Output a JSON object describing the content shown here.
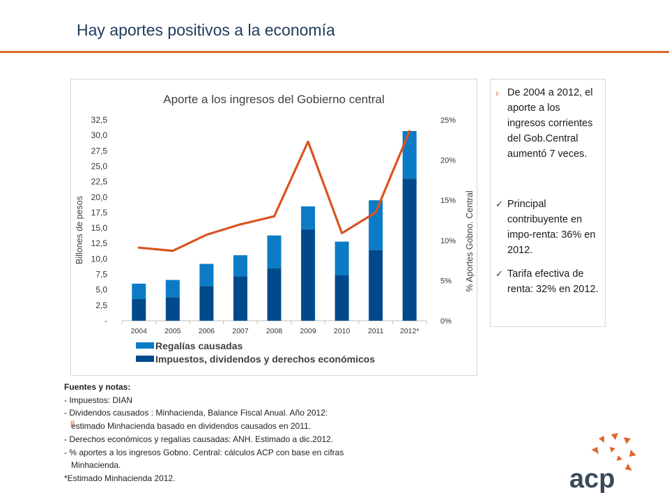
{
  "slide": {
    "title": "Hay aportes positivos a la economía",
    "page_number": "8"
  },
  "chart_data": {
    "type": "bar",
    "title": "Aporte a los ingresos del Gobierno central",
    "ylabel": "Billones de pesos",
    "y2label": "% Aportes Gobno. Central",
    "ylim": [
      0,
      32.5
    ],
    "y2lim": [
      0,
      25
    ],
    "yticks": [
      "-",
      "2,5",
      "5,0",
      "7,5",
      "10,0",
      "12,5",
      "15,0",
      "17,5",
      "20,0",
      "22,5",
      "25,0",
      "27,5",
      "30,0",
      "32,5"
    ],
    "y2ticks": [
      "0%",
      "5%",
      "10%",
      "15%",
      "20%",
      "25%"
    ],
    "categories": [
      "2004",
      "2005",
      "2006",
      "2007",
      "2008",
      "2009",
      "2010",
      "2011",
      "2012*"
    ],
    "stacked": true,
    "grid": false,
    "legend_position": "bottom",
    "series": [
      {
        "name": "Impuestos, dividendos y derechos económicos",
        "color": "#004a8c",
        "values": [
          3.5,
          3.8,
          5.6,
          7.2,
          8.5,
          14.8,
          7.4,
          11.4,
          23.0
        ]
      },
      {
        "name": "Regalías causadas",
        "color": "#0b7bc5",
        "values": [
          2.5,
          2.8,
          3.6,
          3.4,
          5.3,
          3.7,
          5.4,
          8.1,
          7.7
        ]
      }
    ],
    "line_series": {
      "name": "% Aportes Gobno. Central",
      "color": "#d9531e",
      "axis": "secondary",
      "values": [
        9.1,
        8.7,
        10.7,
        12.0,
        13.0,
        22.3,
        10.9,
        13.5,
        23.6
      ]
    }
  },
  "side_panel": {
    "bullets": [
      {
        "icon": "arrow-icon",
        "text": "De 2004 a 2012, el aporte a los ingresos corrientes del Gob.Central aumentó 7 veces."
      },
      {
        "icon": "check-icon",
        "text": "Principal contribuyente en impo-renta: 36% en 2012."
      },
      {
        "icon": "check-icon",
        "text": "Tarifa efectiva de renta: 32% en 2012."
      }
    ]
  },
  "notes": {
    "heading": "Fuentes y notas:",
    "lines": [
      "- Impuestos: DIAN",
      "- Dividendos causados : Minhacienda, Balance Fiscal Anual. Año 2012:",
      "estimado Minhacienda basado en dividendos causados en 2011.",
      "- Derechos económicos y regalías causadas: ANH. Estimado a dic.2012.",
      "- % aportes a los ingresos Gobno.  Central: cálculos ACP con base en cifras",
      "Minhacienda.",
      "*Estimado Minhacienda 2012."
    ]
  },
  "logo": {
    "text": "acp",
    "color": "#e0652a",
    "text_color": "#3b4a5a"
  }
}
